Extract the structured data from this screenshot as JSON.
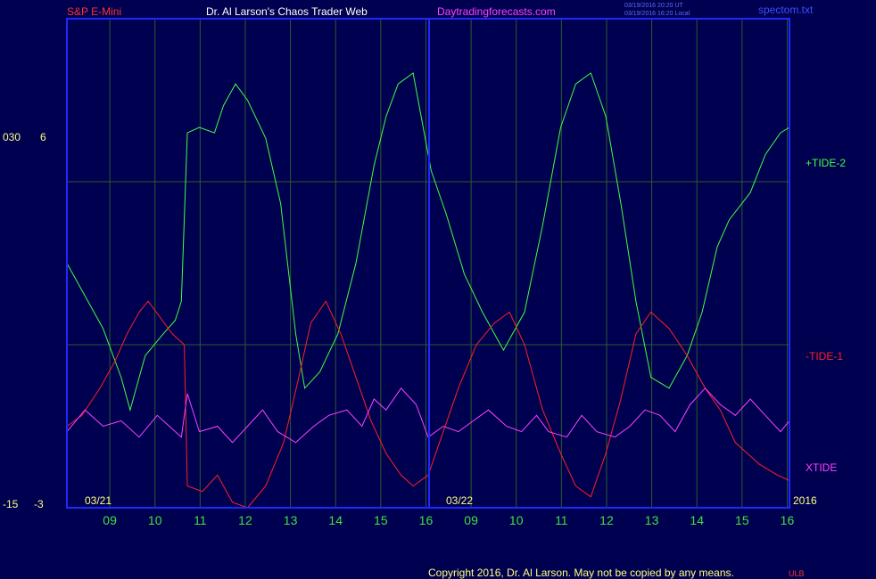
{
  "header": {
    "instrument": "S&P E-Mini",
    "author": "Dr. Al Larson's Chaos Trader Web",
    "site": "Daytradingforecasts.com",
    "stamp_ut": "03/19/2016 20:20 UT",
    "stamp_local": "03/19/2016 16:20 Local",
    "file": "spectom.txt"
  },
  "left_axis": {
    "upper_a": "030",
    "upper_b": "6",
    "lower_a": "-15",
    "lower_b": "-3"
  },
  "date_labels": [
    "03/21",
    "03/22"
  ],
  "year_label": "2016",
  "copyright": "Copyright 2016, Dr. Al Larson. May not be copied by any means.",
  "copyright_suffix": "ULB",
  "colors": {
    "background": "#000050",
    "frame": "#1e28ff",
    "grid": "#2d5a2d",
    "header_red": "#ff3030",
    "header_white": "#ffffff",
    "header_magenta": "#ff40ff",
    "hour_green": "#40e040",
    "plus_tide": "#40ff40",
    "minus_tide": "#ff2020",
    "xtide": "#ff40ff",
    "axis_text": "#ffff80"
  },
  "chart_data": {
    "type": "line",
    "x_ticks": [
      "09",
      "10",
      "11",
      "12",
      "13",
      "14",
      "15",
      "16",
      "09",
      "10",
      "11",
      "12",
      "13",
      "14",
      "15",
      "16"
    ],
    "x_range": [
      0,
      16
    ],
    "ylim": [
      -3,
      6
    ],
    "grid": true,
    "series": [
      {
        "name": "+TIDE-2",
        "color": "#40ff40",
        "points": [
          [
            0.0,
            1.5
          ],
          [
            0.35,
            0.8
          ],
          [
            0.6,
            0.3
          ],
          [
            0.9,
            -0.6
          ],
          [
            1.05,
            -1.2
          ],
          [
            1.3,
            -0.2
          ],
          [
            1.6,
            0.2
          ],
          [
            1.8,
            0.45
          ],
          [
            1.9,
            0.8
          ],
          [
            2.0,
            3.9
          ],
          [
            2.2,
            4.0
          ],
          [
            2.45,
            3.9
          ],
          [
            2.6,
            4.4
          ],
          [
            2.8,
            4.8
          ],
          [
            3.0,
            4.5
          ],
          [
            3.3,
            3.8
          ],
          [
            3.55,
            2.6
          ],
          [
            3.8,
            0.2
          ],
          [
            3.95,
            -0.8
          ],
          [
            4.2,
            -0.5
          ],
          [
            4.5,
            0.2
          ],
          [
            4.8,
            1.5
          ],
          [
            5.1,
            3.3
          ],
          [
            5.3,
            4.2
          ],
          [
            5.5,
            4.8
          ],
          [
            5.75,
            5.0
          ],
          [
            6.05,
            3.2
          ],
          [
            6.3,
            2.4
          ],
          [
            6.6,
            1.3
          ],
          [
            6.9,
            0.6
          ],
          [
            7.25,
            -0.1
          ],
          [
            7.6,
            0.6
          ],
          [
            7.9,
            2.2
          ],
          [
            8.2,
            4.0
          ],
          [
            8.45,
            4.8
          ],
          [
            8.7,
            5.0
          ],
          [
            8.95,
            4.2
          ],
          [
            9.2,
            2.6
          ],
          [
            9.45,
            0.8
          ],
          [
            9.7,
            -0.6
          ],
          [
            10.0,
            -0.8
          ],
          [
            10.3,
            -0.2
          ],
          [
            10.55,
            0.6
          ],
          [
            10.8,
            1.8
          ],
          [
            11.0,
            2.3
          ],
          [
            11.35,
            2.8
          ],
          [
            11.6,
            3.5
          ],
          [
            11.85,
            3.9
          ],
          [
            12.0,
            4.0
          ]
        ]
      },
      {
        "name": "-TIDE-1",
        "color": "#ff2020",
        "points": [
          [
            0.0,
            -1.5
          ],
          [
            0.25,
            -1.3
          ],
          [
            0.55,
            -0.8
          ],
          [
            0.8,
            -0.3
          ],
          [
            1.0,
            0.2
          ],
          [
            1.2,
            0.6
          ],
          [
            1.35,
            0.8
          ],
          [
            1.55,
            0.5
          ],
          [
            1.75,
            0.2
          ],
          [
            1.95,
            0.0
          ],
          [
            2.0,
            -2.6
          ],
          [
            2.25,
            -2.7
          ],
          [
            2.5,
            -2.4
          ],
          [
            2.75,
            -2.9
          ],
          [
            3.0,
            -3.0
          ],
          [
            3.3,
            -2.6
          ],
          [
            3.6,
            -1.8
          ],
          [
            3.85,
            -0.6
          ],
          [
            4.05,
            0.4
          ],
          [
            4.3,
            0.8
          ],
          [
            4.55,
            0.2
          ],
          [
            4.8,
            -0.6
          ],
          [
            5.05,
            -1.4
          ],
          [
            5.3,
            -2.0
          ],
          [
            5.55,
            -2.4
          ],
          [
            5.75,
            -2.6
          ],
          [
            6.0,
            -2.4
          ],
          [
            6.25,
            -1.6
          ],
          [
            6.5,
            -0.8
          ],
          [
            6.8,
            0.0
          ],
          [
            7.1,
            0.4
          ],
          [
            7.35,
            0.6
          ],
          [
            7.6,
            0.0
          ],
          [
            7.9,
            -1.2
          ],
          [
            8.2,
            -2.0
          ],
          [
            8.45,
            -2.6
          ],
          [
            8.7,
            -2.8
          ],
          [
            8.95,
            -2.0
          ],
          [
            9.2,
            -1.0
          ],
          [
            9.45,
            0.2
          ],
          [
            9.7,
            0.6
          ],
          [
            10.0,
            0.3
          ],
          [
            10.3,
            -0.2
          ],
          [
            10.6,
            -0.8
          ],
          [
            10.85,
            -1.2
          ],
          [
            11.1,
            -1.8
          ],
          [
            11.5,
            -2.2
          ],
          [
            11.8,
            -2.4
          ],
          [
            12.0,
            -2.5
          ]
        ]
      },
      {
        "name": "XTIDE",
        "color": "#ff40ff",
        "points": [
          [
            0.0,
            -1.6
          ],
          [
            0.3,
            -1.2
          ],
          [
            0.6,
            -1.5
          ],
          [
            0.9,
            -1.4
          ],
          [
            1.2,
            -1.7
          ],
          [
            1.5,
            -1.3
          ],
          [
            1.7,
            -1.5
          ],
          [
            1.9,
            -1.7
          ],
          [
            2.0,
            -0.9
          ],
          [
            2.2,
            -1.6
          ],
          [
            2.5,
            -1.5
          ],
          [
            2.75,
            -1.8
          ],
          [
            3.0,
            -1.5
          ],
          [
            3.25,
            -1.2
          ],
          [
            3.5,
            -1.6
          ],
          [
            3.8,
            -1.8
          ],
          [
            4.1,
            -1.5
          ],
          [
            4.35,
            -1.3
          ],
          [
            4.65,
            -1.2
          ],
          [
            4.9,
            -1.5
          ],
          [
            5.1,
            -1.0
          ],
          [
            5.3,
            -1.2
          ],
          [
            5.55,
            -0.8
          ],
          [
            5.8,
            -1.1
          ],
          [
            6.0,
            -1.7
          ],
          [
            6.25,
            -1.5
          ],
          [
            6.5,
            -1.6
          ],
          [
            6.75,
            -1.4
          ],
          [
            7.0,
            -1.2
          ],
          [
            7.3,
            -1.5
          ],
          [
            7.55,
            -1.6
          ],
          [
            7.8,
            -1.3
          ],
          [
            8.0,
            -1.6
          ],
          [
            8.3,
            -1.7
          ],
          [
            8.55,
            -1.3
          ],
          [
            8.8,
            -1.6
          ],
          [
            9.1,
            -1.7
          ],
          [
            9.35,
            -1.5
          ],
          [
            9.6,
            -1.2
          ],
          [
            9.85,
            -1.3
          ],
          [
            10.1,
            -1.6
          ],
          [
            10.35,
            -1.1
          ],
          [
            10.6,
            -0.8
          ],
          [
            10.85,
            -1.1
          ],
          [
            11.1,
            -1.3
          ],
          [
            11.35,
            -1.0
          ],
          [
            11.6,
            -1.3
          ],
          [
            11.85,
            -1.6
          ],
          [
            12.0,
            -1.4
          ]
        ]
      }
    ]
  }
}
